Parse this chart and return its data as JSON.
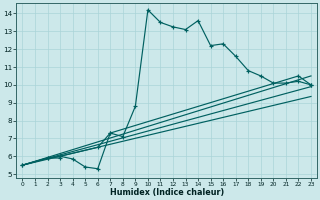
{
  "xlabel": "Humidex (Indice chaleur)",
  "bg_color": "#cce8ea",
  "line_color": "#006060",
  "grid_color": "#aad4d8",
  "xlim": [
    -0.5,
    23.5
  ],
  "ylim": [
    4.8,
    14.6
  ],
  "xticks": [
    0,
    1,
    2,
    3,
    4,
    5,
    6,
    7,
    8,
    9,
    10,
    11,
    12,
    13,
    14,
    15,
    16,
    17,
    18,
    19,
    20,
    21,
    22,
    23
  ],
  "yticks": [
    5,
    6,
    7,
    8,
    9,
    10,
    11,
    12,
    13,
    14
  ],
  "line1_x": [
    0,
    2,
    3,
    3,
    4,
    5,
    6,
    7,
    8,
    9,
    10,
    11,
    12,
    13,
    14,
    15,
    16,
    17,
    18,
    19,
    20,
    21,
    22,
    23
  ],
  "line1_y": [
    5.5,
    5.9,
    5.9,
    6.0,
    5.85,
    5.4,
    5.3,
    7.3,
    7.1,
    8.8,
    14.2,
    13.5,
    13.25,
    13.1,
    13.6,
    12.2,
    12.3,
    11.6,
    10.8,
    10.5,
    10.1,
    10.1,
    10.2,
    10.0
  ],
  "line2_x": [
    0,
    2,
    3,
    6,
    7,
    22,
    23
  ],
  "line2_y": [
    5.5,
    5.9,
    6.0,
    6.5,
    7.3,
    10.5,
    10.0
  ],
  "line3_x": [
    0,
    23
  ],
  "line3_y": [
    5.5,
    10.5
  ],
  "line4_x": [
    0,
    23
  ],
  "line4_y": [
    5.5,
    9.9
  ],
  "line5_x": [
    0,
    23
  ],
  "line5_y": [
    5.5,
    9.35
  ]
}
